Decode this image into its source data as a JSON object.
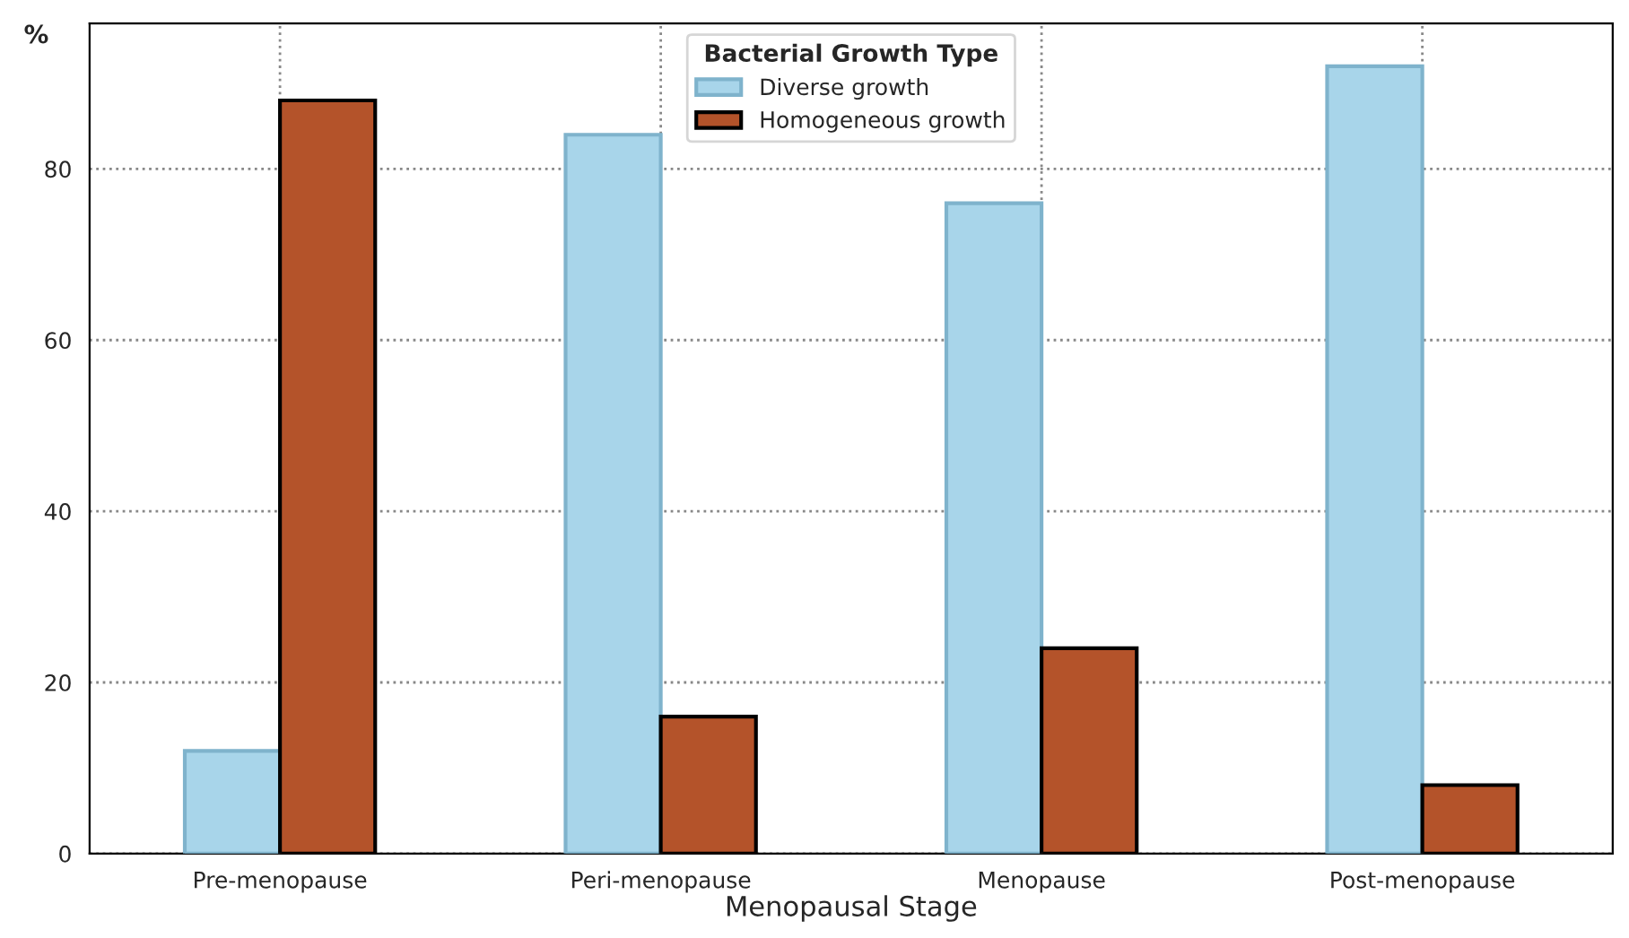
{
  "chart_data": {
    "type": "bar",
    "xlabel": "Menopausal Stage",
    "ylabel": "%",
    "legend_title": "Bacterial Growth Type",
    "categories": [
      "Pre-menopause",
      "Peri-menopause",
      "Menopause",
      "Post-menopause"
    ],
    "series": [
      {
        "name": "Diverse growth",
        "color": "#a8d5ea",
        "values": [
          12,
          84,
          76,
          92
        ]
      },
      {
        "name": "Homogeneous growth",
        "color": "#b4532a",
        "values": [
          88,
          16,
          24,
          8
        ]
      }
    ],
    "ylim": [
      0,
      97
    ],
    "yticks": [
      0,
      20,
      40,
      60,
      80
    ],
    "grid": true,
    "legend": "top"
  }
}
